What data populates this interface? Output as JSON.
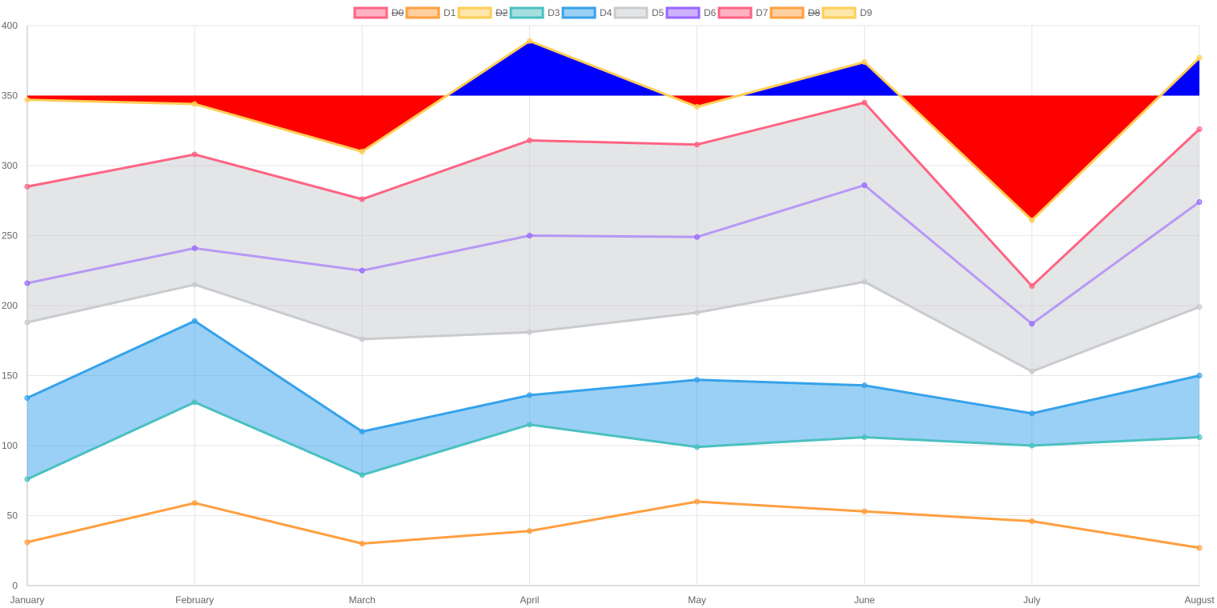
{
  "chart_data": {
    "type": "area",
    "categories": [
      "January",
      "February",
      "March",
      "April",
      "May",
      "June",
      "July",
      "August"
    ],
    "ylim": [
      0,
      400
    ],
    "yticks": [
      0,
      50,
      100,
      150,
      200,
      250,
      300,
      350,
      400
    ],
    "grid": true,
    "legend_position": "top",
    "series": [
      {
        "name": "D0",
        "color": "#ff6384",
        "hidden": true
      },
      {
        "name": "D1",
        "color": "#ff9f40",
        "values": [
          31,
          59,
          30,
          39,
          60,
          53,
          46,
          27
        ]
      },
      {
        "name": "D2",
        "color": "#ffcd56",
        "hidden": true
      },
      {
        "name": "D3",
        "color": "#4bc0c0",
        "values": [
          76,
          131,
          79,
          115,
          99,
          106,
          100,
          106
        ]
      },
      {
        "name": "D4",
        "color": "#36a2eb",
        "values": [
          134,
          189,
          110,
          136,
          147,
          143,
          123,
          150
        ],
        "fill": "D3",
        "fill_color": "rgba(54,162,235,0.5)"
      },
      {
        "name": "D5",
        "color": "#c9cbcf",
        "values": [
          188,
          215,
          176,
          181,
          195,
          217,
          153,
          199
        ]
      },
      {
        "name": "D6",
        "color": "#9966ff",
        "values": [
          216,
          241,
          225,
          250,
          249,
          286,
          187,
          274
        ]
      },
      {
        "name": "D7",
        "color": "#ff6384",
        "values": [
          285,
          308,
          276,
          318,
          315,
          345,
          214,
          326
        ],
        "fill": "D5",
        "fill_color": "rgba(201,203,207,0.5)"
      },
      {
        "name": "D8",
        "color": "#ff9f40",
        "hidden": true
      },
      {
        "name": "D9",
        "color": "#ffcd56",
        "values": [
          347,
          344,
          310,
          389,
          342,
          374,
          261,
          377
        ],
        "fill_value": 350,
        "fill_above": "#0000ff",
        "fill_below": "#ff0000"
      }
    ]
  }
}
